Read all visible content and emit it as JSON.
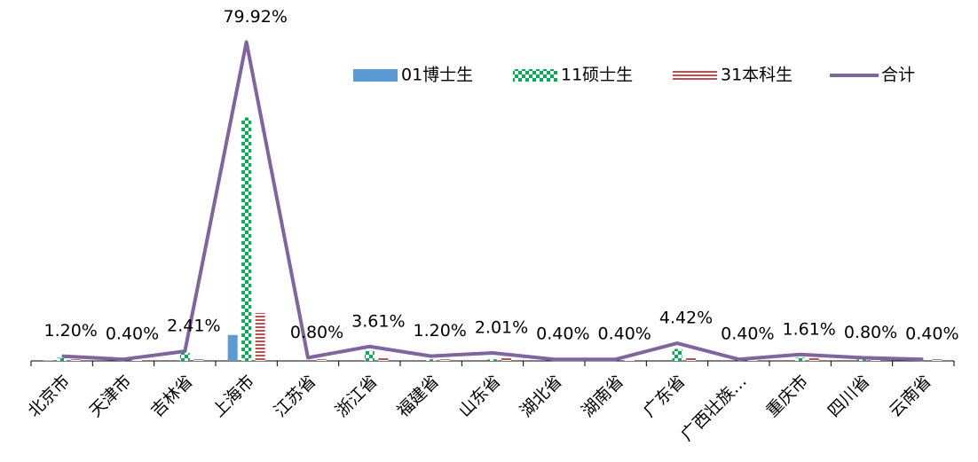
{
  "chart_data": {
    "type": "bar-line",
    "categories": [
      "北京市",
      "天津市",
      "吉林省",
      "上海市",
      "江苏省",
      "浙江省",
      "福建省",
      "山东省",
      "湖北省",
      "湖南省",
      "广东省",
      "广西壮族…",
      "重庆市",
      "四川省",
      "云南省"
    ],
    "series": [
      {
        "name": "01博士生",
        "color": "#5b9bd5",
        "pattern": "solid",
        "values": [
          0.1,
          0,
          0,
          6.5,
          0,
          0,
          0,
          0,
          0,
          0,
          0,
          0,
          0,
          0,
          0
        ]
      },
      {
        "name": "11硕士生",
        "color": "#00b050",
        "pattern": "checker",
        "values": [
          0.8,
          0,
          2.0,
          61,
          0,
          2.5,
          0.4,
          0.4,
          0,
          0,
          3.0,
          0,
          0.8,
          0.4,
          0
        ]
      },
      {
        "name": "31本科生",
        "color": "#c0504d",
        "pattern": "stripes",
        "values": [
          0.4,
          0.2,
          0.4,
          12,
          0.4,
          0.8,
          0.4,
          0.8,
          0.2,
          0.2,
          1.0,
          0.2,
          0.8,
          0.4,
          0.4
        ]
      },
      {
        "name": "合计",
        "color": "#8064a2",
        "type": "line",
        "values": [
          1.2,
          0.4,
          2.41,
          79.92,
          0.8,
          3.61,
          1.2,
          2.01,
          0.4,
          0.4,
          4.42,
          0.4,
          1.61,
          0.8,
          0.4
        ],
        "value_labels": [
          "1.20%",
          "0.40%",
          "2.41%",
          "79.92%",
          "0.80%",
          "3.61%",
          "1.20%",
          "2.01%",
          "0.40%",
          "0.40%",
          "4.42%",
          "0.40%",
          "1.61%",
          "0.80%",
          "0.40%"
        ]
      }
    ],
    "ylim": [
      0,
      80
    ],
    "legend": "top-right"
  }
}
